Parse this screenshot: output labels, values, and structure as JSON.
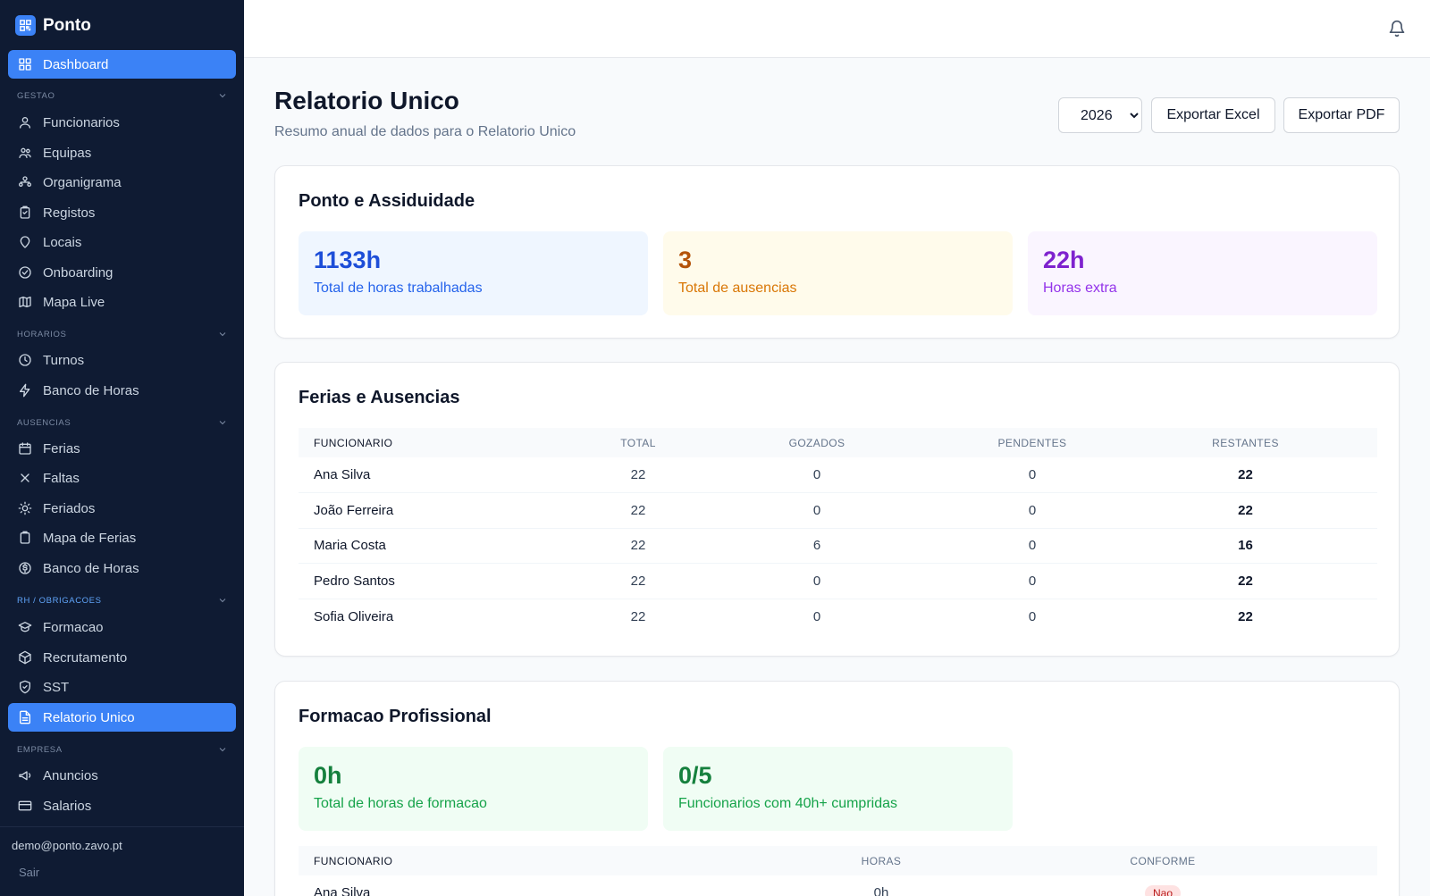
{
  "app": {
    "name": "Ponto"
  },
  "sidebar": {
    "dashboard": "Dashboard",
    "sections": {
      "gestao": "GESTAO",
      "horarios": "HORARIOS",
      "ausencias": "AUSENCIAS",
      "rh": "RH / OBRIGACOES",
      "empresa": "EMPRESA"
    },
    "items": {
      "funcionarios": "Funcionarios",
      "equipas": "Equipas",
      "organigrama": "Organigrama",
      "registos": "Registos",
      "locais": "Locais",
      "onboarding": "Onboarding",
      "mapa_live": "Mapa Live",
      "turnos": "Turnos",
      "banco_horas": "Banco de Horas",
      "ferias": "Ferias",
      "faltas": "Faltas",
      "feriados": "Feriados",
      "mapa_ferias": "Mapa de Ferias",
      "banco_horas_2": "Banco de Horas",
      "formacao": "Formacao",
      "recrutamento": "Recrutamento",
      "sst": "SST",
      "relatorio_unico": "Relatorio Unico",
      "anuncios": "Anuncios",
      "salarios": "Salarios"
    },
    "user_email": "demo@ponto.zavo.pt",
    "logout": "Sair"
  },
  "header": {
    "title": "Relatorio Unico",
    "subtitle": "Resumo anual de dados para o Relatorio Unico",
    "year_selected": "2026",
    "export_excel": "Exportar Excel",
    "export_pdf": "Exportar PDF"
  },
  "ponto": {
    "title": "Ponto e Assiduidade",
    "hours_value": "1133h",
    "hours_label": "Total de horas trabalhadas",
    "absences_value": "3",
    "absences_label": "Total de ausencias",
    "extra_value": "22h",
    "extra_label": "Horas extra"
  },
  "ferias": {
    "title": "Ferias e Ausencias",
    "columns": [
      "FUNCIONARIO",
      "TOTAL",
      "GOZADOS",
      "PENDENTES",
      "RESTANTES"
    ],
    "rows": [
      [
        "Ana Silva",
        "22",
        "0",
        "0",
        "22"
      ],
      [
        "João Ferreira",
        "22",
        "0",
        "0",
        "22"
      ],
      [
        "Maria Costa",
        "22",
        "6",
        "0",
        "16"
      ],
      [
        "Pedro Santos",
        "22",
        "0",
        "0",
        "22"
      ],
      [
        "Sofia Oliveira",
        "22",
        "0",
        "0",
        "22"
      ]
    ]
  },
  "formacao": {
    "title": "Formacao Profissional",
    "hours_value": "0h",
    "hours_label": "Total de horas de formacao",
    "compliance_value": "0/5",
    "compliance_label": "Funcionarios com 40h+ cumpridas",
    "columns": [
      "FUNCIONARIO",
      "HORAS",
      "CONFORME"
    ],
    "rows": [
      [
        "Ana Silva",
        "0h",
        "Nao"
      ]
    ]
  }
}
